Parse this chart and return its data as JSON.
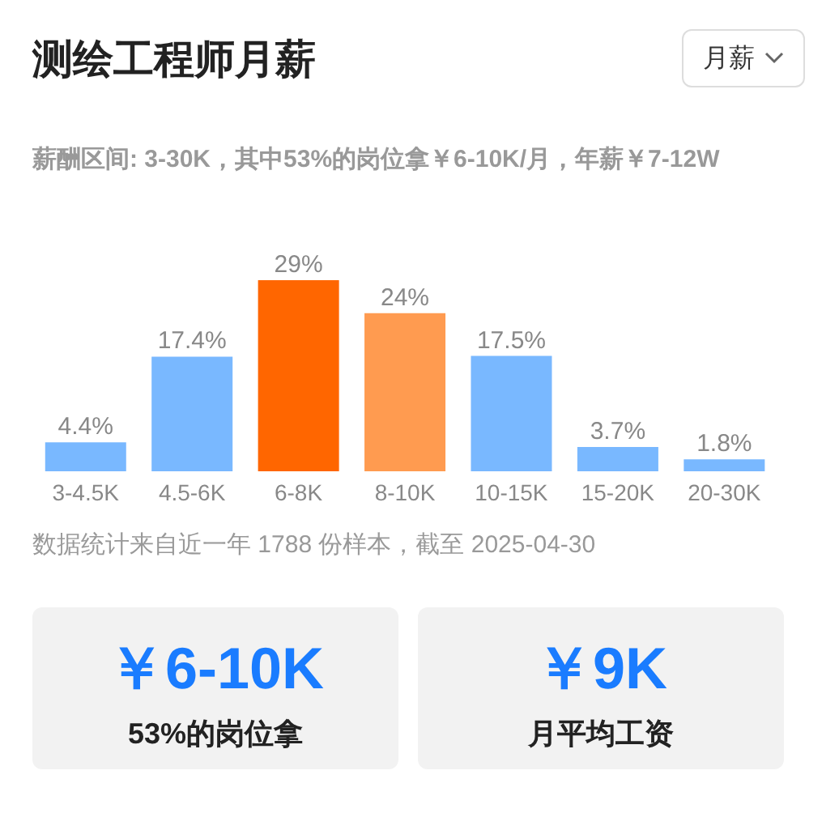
{
  "chart_data": {
    "type": "bar",
    "title": "测绘工程师月薪",
    "subtitle": "薪酬区间: 3-30K，其中53%的岗位拿￥6-10K/月，年薪￥7-12W",
    "categories": [
      "3-4.5K",
      "4.5-6K",
      "6-8K",
      "8-10K",
      "10-15K",
      "15-20K",
      "20-30K"
    ],
    "values": [
      4.4,
      17.4,
      29,
      24,
      17.5,
      3.7,
      1.8
    ],
    "colors": [
      "#79b8ff",
      "#79b8ff",
      "#ff6600",
      "#ff9b50",
      "#79b8ff",
      "#79b8ff",
      "#79b8ff"
    ],
    "value_labels": [
      "4.4%",
      "17.4%",
      "29%",
      "24%",
      "17.5%",
      "3.7%",
      "1.8%"
    ],
    "annotations": [
      "月薪",
      "数据统计来自近一年 1788 份样本，截至 2025-04-30",
      "￥6-10K",
      "53%的岗位拿",
      "￥9K",
      "月平均工资"
    ]
  }
}
